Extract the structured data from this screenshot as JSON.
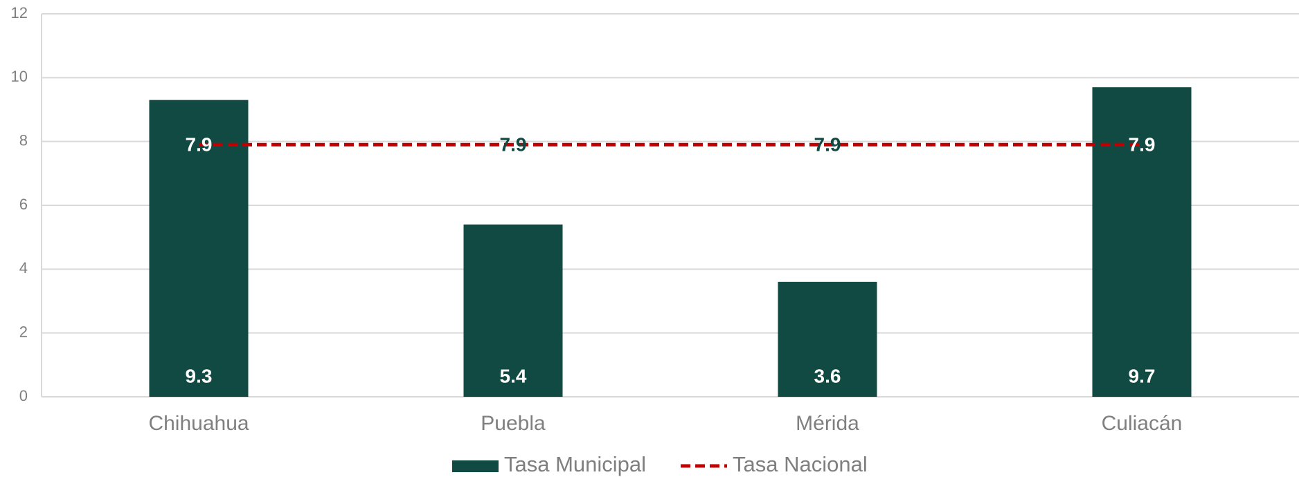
{
  "chart_data": {
    "type": "bar",
    "categories": [
      "Chihuahua",
      "Puebla",
      "Mérida",
      "Culiacán"
    ],
    "series": [
      {
        "name": "Tasa Municipal",
        "type": "bar",
        "color": "#104a42",
        "values": [
          9.3,
          5.4,
          3.6,
          9.7
        ]
      },
      {
        "name": "Tasa Nacional",
        "type": "line",
        "color": "#c00000",
        "values": [
          7.9,
          7.9,
          7.9,
          7.9
        ]
      }
    ],
    "ylim": [
      0,
      12
    ],
    "yticks": [
      0,
      2,
      4,
      6,
      8,
      10,
      12
    ],
    "grid": true,
    "legend": "bottom"
  }
}
